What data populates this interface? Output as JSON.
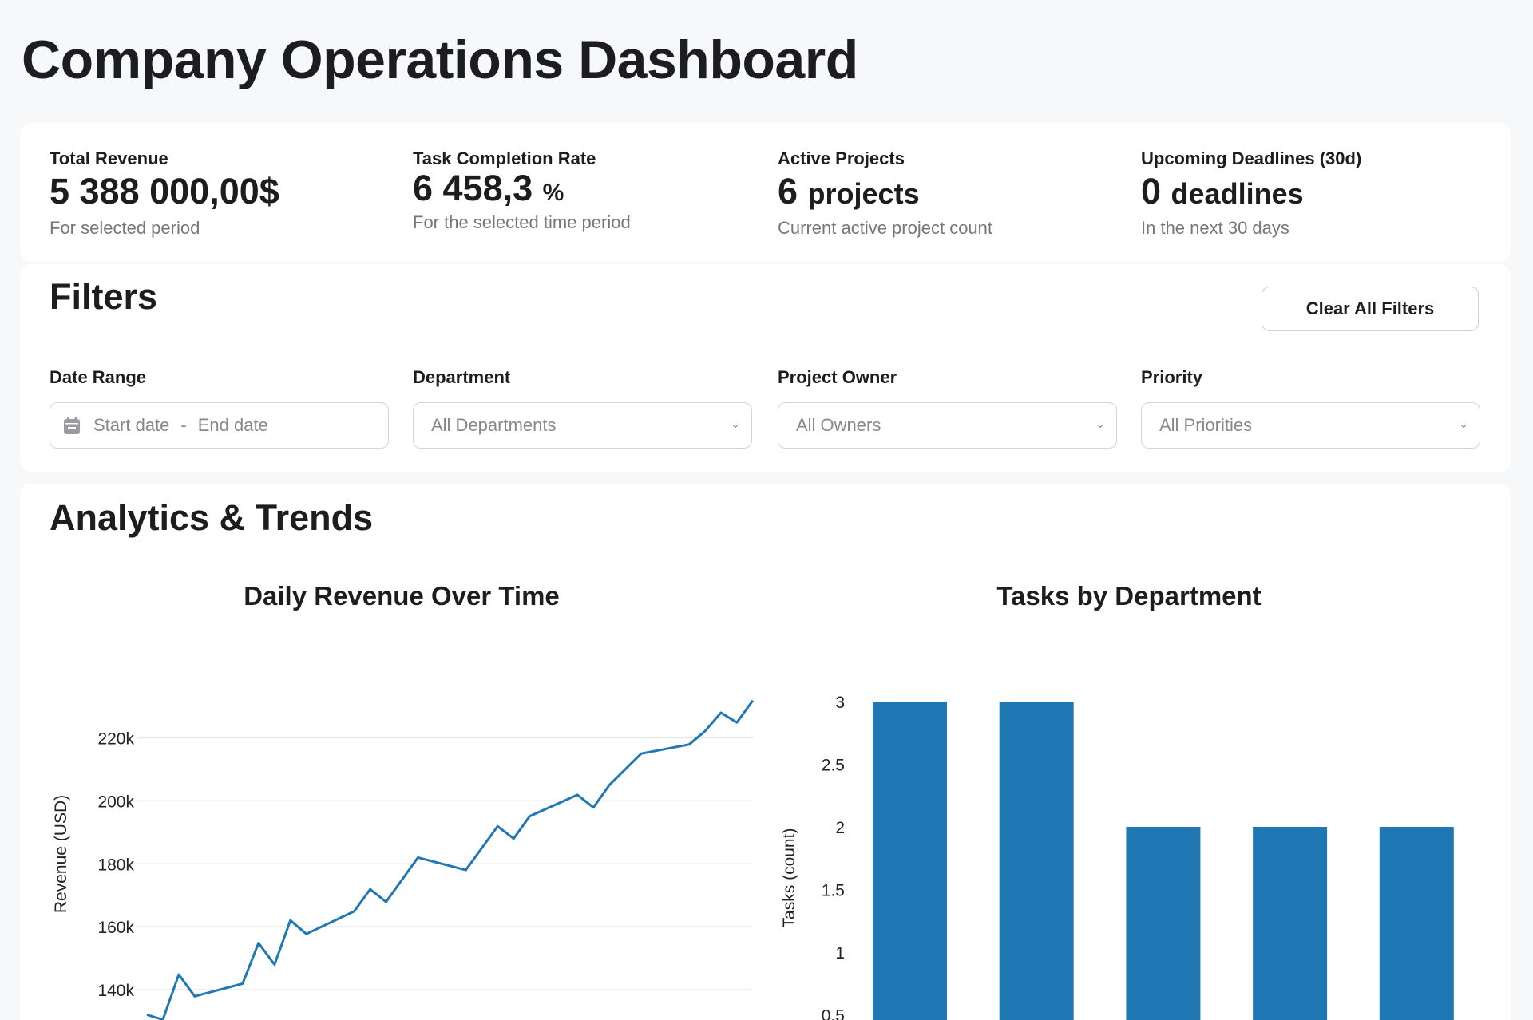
{
  "header": {
    "title": "Company Operations Dashboard"
  },
  "kpis": [
    {
      "label": "Total Revenue",
      "value": "5 388 000,00$",
      "unit": "",
      "subtitle": "For selected period"
    },
    {
      "label": "Task Completion Rate",
      "value": "6 458,3",
      "unit": "%",
      "subtitle": "For the selected time period"
    },
    {
      "label": "Active Projects",
      "value": "6",
      "unit": "projects",
      "subtitle": "Current active project count"
    },
    {
      "label": "Upcoming Deadlines (30d)",
      "value": "0",
      "unit": "deadlines",
      "subtitle": "In the next 30 days"
    }
  ],
  "filters": {
    "title": "Filters",
    "clear_label": "Clear All Filters",
    "date_range": {
      "label": "Date Range",
      "start_placeholder": "Start date",
      "separator": "-",
      "end_placeholder": "End date"
    },
    "department": {
      "label": "Department",
      "value": "All Departments"
    },
    "owner": {
      "label": "Project Owner",
      "value": "All Owners"
    },
    "priority": {
      "label": "Priority",
      "value": "All Priorities"
    }
  },
  "analytics": {
    "title": "Analytics & Trends"
  },
  "colors": {
    "accent": "#1f77b4",
    "grid": "#e8e8ea",
    "background": "#f7f8fa"
  },
  "chart_data": [
    {
      "type": "line",
      "title": "Daily Revenue Over Time",
      "xlabel": "",
      "ylabel": "Revenue (USD)",
      "yticks": [
        140000,
        160000,
        180000,
        200000,
        220000
      ],
      "ytick_labels": [
        "140k",
        "160k",
        "180k",
        "200k",
        "220k"
      ],
      "grid": true,
      "x_day_index": [
        0,
        1,
        2,
        3,
        6,
        7,
        8,
        9,
        10,
        13,
        14,
        15,
        17,
        20,
        22,
        23,
        24,
        27,
        28,
        29,
        31,
        34,
        35,
        36,
        37,
        38
      ],
      "values": [
        132000,
        130500,
        144800,
        137900,
        141900,
        154800,
        148000,
        162000,
        157700,
        164900,
        171900,
        167900,
        182000,
        178000,
        191900,
        188000,
        195100,
        201900,
        197900,
        205000,
        215000,
        217900,
        222100,
        228000,
        224900,
        231900
      ]
    },
    {
      "type": "bar",
      "title": "Tasks by Department",
      "xlabel": "",
      "ylabel": "Tasks (count)",
      "yticks": [
        0.5,
        1,
        1.5,
        2,
        2.5,
        3
      ],
      "ytick_labels": [
        "0.5",
        "1",
        "1.5",
        "2",
        "2.5",
        "3"
      ],
      "values": [
        3,
        3,
        2,
        2,
        2
      ]
    }
  ]
}
